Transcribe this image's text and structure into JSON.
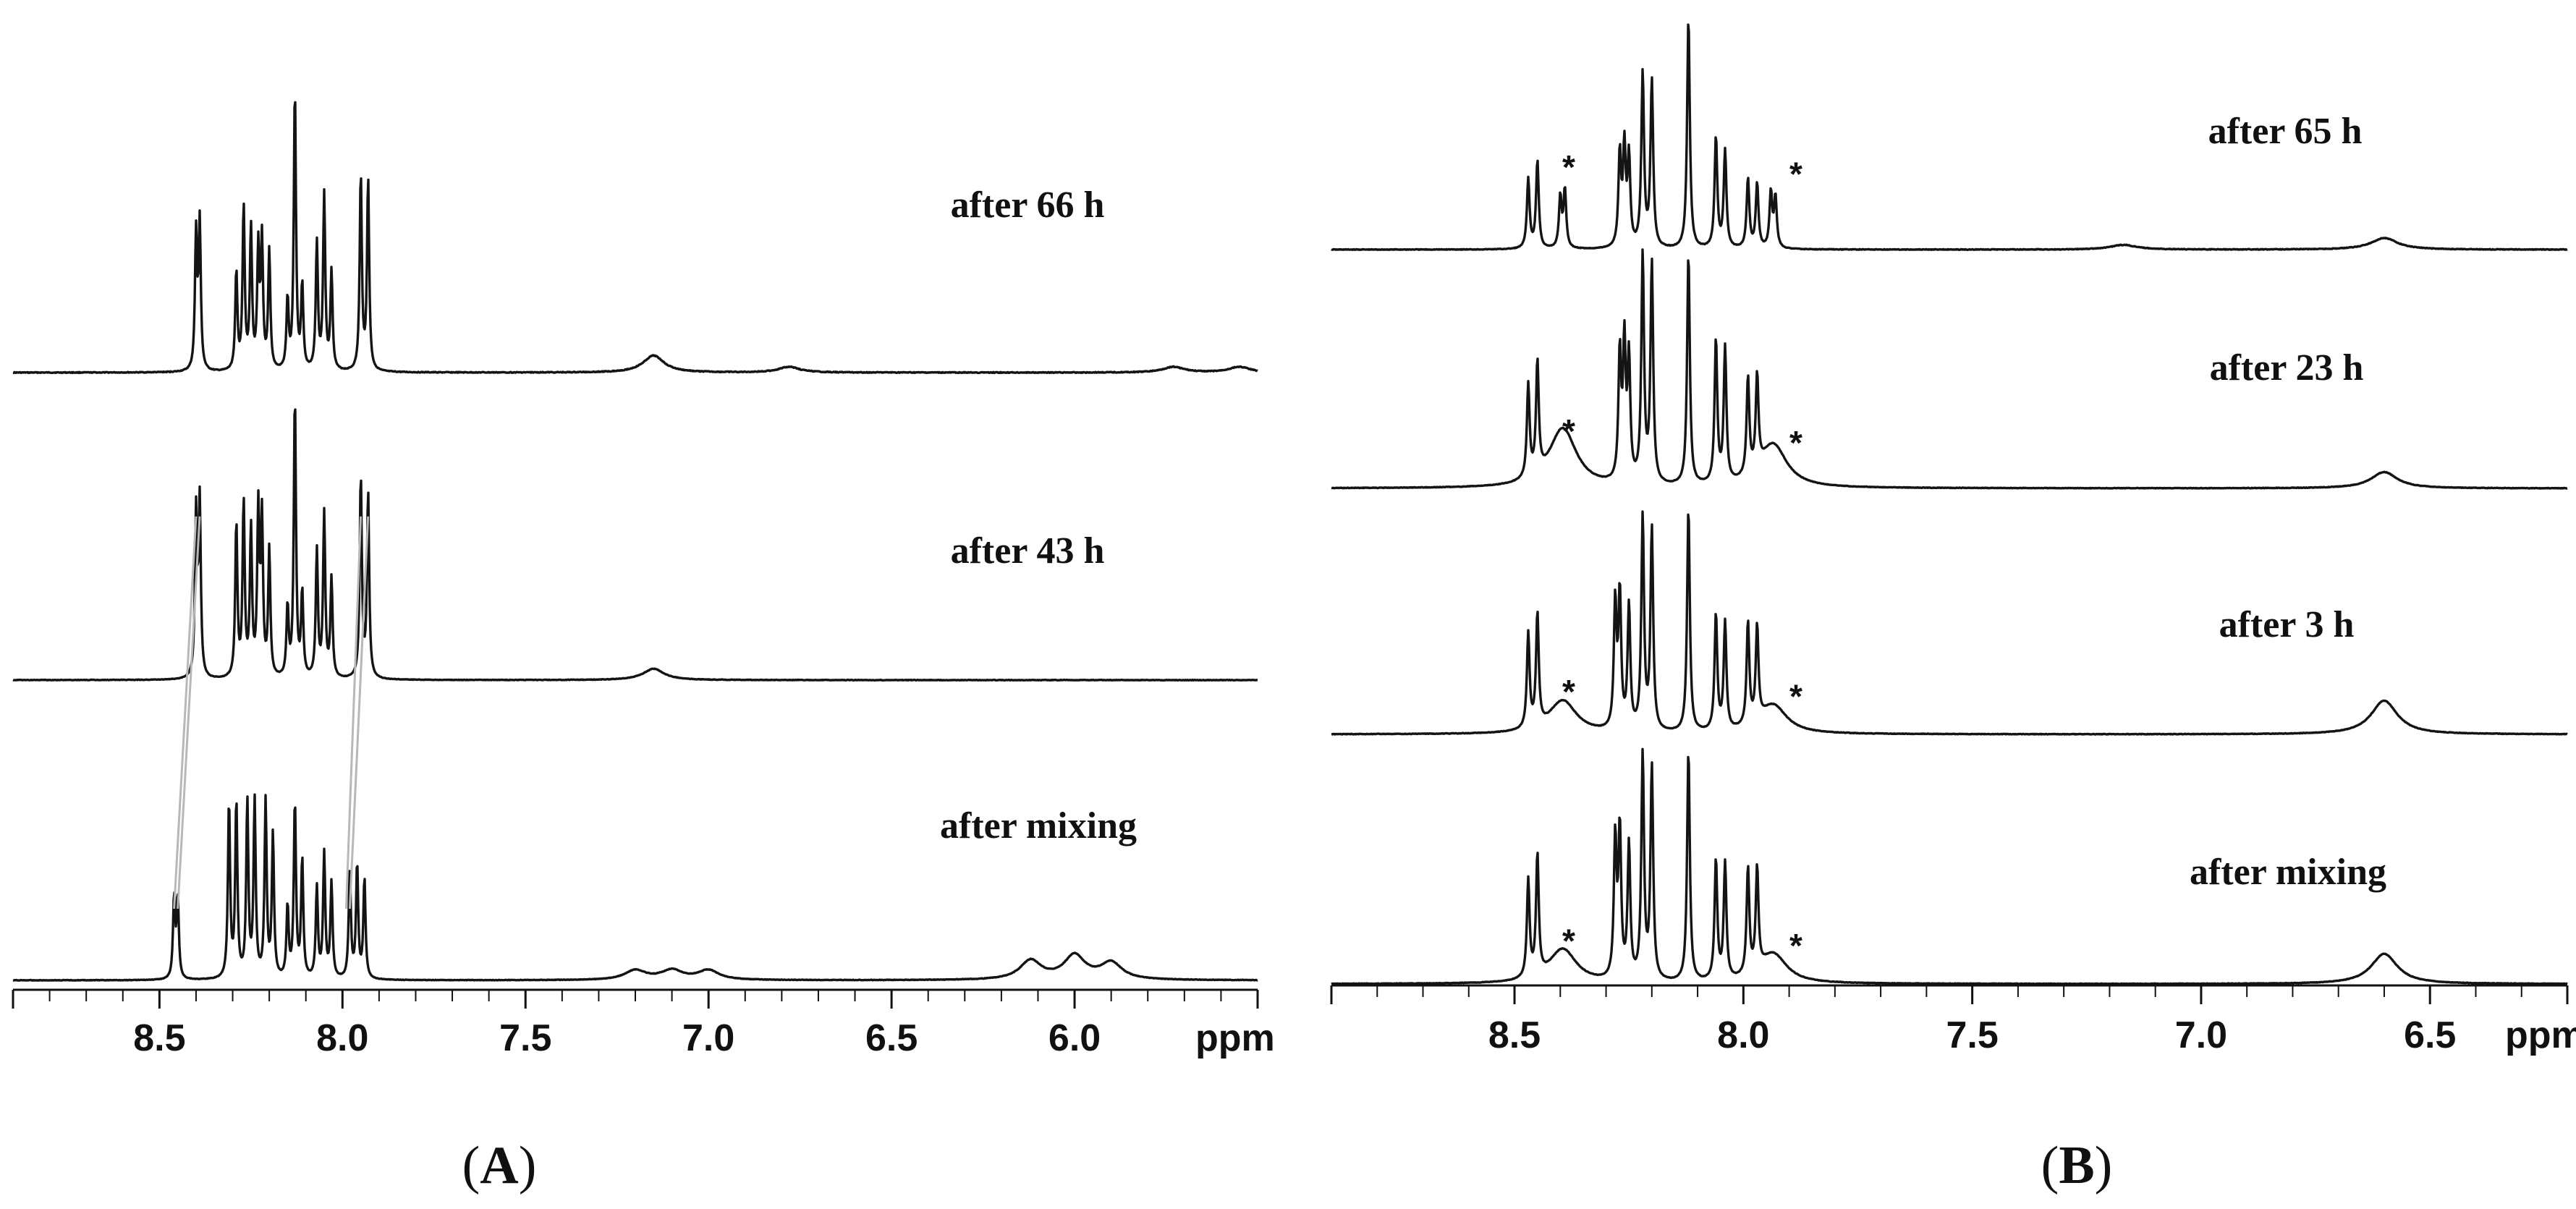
{
  "chart_data": [
    {
      "panel": "A",
      "type": "line",
      "subtype": "stacked 1H NMR spectra",
      "xlabel": "ppm",
      "xlim": [
        8.9,
        5.5
      ],
      "x_reversed": true,
      "x_ticks": [
        "8.5",
        "8.0",
        "7.5",
        "7.0",
        "6.5",
        "6.0"
      ],
      "series": [
        {
          "name": "after 66 h",
          "peaks": [
            {
              "ppm": 8.4,
              "height": 0.48
            },
            {
              "ppm": 8.39,
              "height": 0.52
            },
            {
              "ppm": 8.29,
              "height": 0.35
            },
            {
              "ppm": 8.27,
              "height": 0.58
            },
            {
              "ppm": 8.25,
              "height": 0.5
            },
            {
              "ppm": 8.23,
              "height": 0.42
            },
            {
              "ppm": 8.22,
              "height": 0.45
            },
            {
              "ppm": 8.2,
              "height": 0.42
            },
            {
              "ppm": 8.15,
              "height": 0.25
            },
            {
              "ppm": 8.13,
              "height": 1.0
            },
            {
              "ppm": 8.11,
              "height": 0.3
            },
            {
              "ppm": 8.07,
              "height": 0.45
            },
            {
              "ppm": 8.05,
              "height": 0.62
            },
            {
              "ppm": 8.03,
              "height": 0.35
            },
            {
              "ppm": 7.95,
              "height": 0.7
            },
            {
              "ppm": 7.93,
              "height": 0.68
            },
            {
              "ppm": 7.15,
              "height": 0.06
            },
            {
              "ppm": 6.78,
              "height": 0.02
            },
            {
              "ppm": 5.73,
              "height": 0.02
            },
            {
              "ppm": 5.55,
              "height": 0.02
            }
          ]
        },
        {
          "name": "after 43 h",
          "peaks": [
            {
              "ppm": 8.4,
              "height": 0.58
            },
            {
              "ppm": 8.39,
              "height": 0.62
            },
            {
              "ppm": 8.29,
              "height": 0.55
            },
            {
              "ppm": 8.27,
              "height": 0.62
            },
            {
              "ppm": 8.25,
              "height": 0.52
            },
            {
              "ppm": 8.23,
              "height": 0.58
            },
            {
              "ppm": 8.22,
              "height": 0.55
            },
            {
              "ppm": 8.2,
              "height": 0.45
            },
            {
              "ppm": 8.15,
              "height": 0.25
            },
            {
              "ppm": 8.13,
              "height": 1.0
            },
            {
              "ppm": 8.11,
              "height": 0.3
            },
            {
              "ppm": 8.07,
              "height": 0.45
            },
            {
              "ppm": 8.05,
              "height": 0.58
            },
            {
              "ppm": 8.03,
              "height": 0.35
            },
            {
              "ppm": 7.95,
              "height": 0.72
            },
            {
              "ppm": 7.93,
              "height": 0.66
            },
            {
              "ppm": 7.15,
              "height": 0.04
            }
          ]
        },
        {
          "name": "after mixing",
          "peaks": [
            {
              "ppm": 8.46,
              "height": 0.34
            },
            {
              "ppm": 8.45,
              "height": 0.34
            },
            {
              "ppm": 8.31,
              "height": 0.74
            },
            {
              "ppm": 8.29,
              "height": 0.74
            },
            {
              "ppm": 8.26,
              "height": 0.74
            },
            {
              "ppm": 8.24,
              "height": 0.74
            },
            {
              "ppm": 8.21,
              "height": 0.74
            },
            {
              "ppm": 8.19,
              "height": 0.6
            },
            {
              "ppm": 8.15,
              "height": 0.3
            },
            {
              "ppm": 8.13,
              "height": 0.74
            },
            {
              "ppm": 8.11,
              "height": 0.5
            },
            {
              "ppm": 8.07,
              "height": 0.38
            },
            {
              "ppm": 8.05,
              "height": 0.52
            },
            {
              "ppm": 8.03,
              "height": 0.4
            },
            {
              "ppm": 7.98,
              "height": 0.46
            },
            {
              "ppm": 7.96,
              "height": 0.48
            },
            {
              "ppm": 7.94,
              "height": 0.42
            },
            {
              "ppm": 7.2,
              "height": 0.04
            },
            {
              "ppm": 7.1,
              "height": 0.04
            },
            {
              "ppm": 7.0,
              "height": 0.04
            },
            {
              "ppm": 6.12,
              "height": 0.08
            },
            {
              "ppm": 6.0,
              "height": 0.1
            },
            {
              "ppm": 5.9,
              "height": 0.07
            }
          ]
        }
      ],
      "shift_guides": [
        {
          "from_ppm": 8.46,
          "to_ppm": 8.4
        },
        {
          "from_ppm": 8.45,
          "to_ppm": 8.39
        },
        {
          "from_ppm": 7.99,
          "to_ppm": 7.95
        },
        {
          "from_ppm": 7.98,
          "to_ppm": 7.93
        }
      ]
    },
    {
      "panel": "B",
      "type": "line",
      "subtype": "stacked 1H NMR spectra",
      "xlabel": "ppm",
      "xlim": [
        8.9,
        6.2
      ],
      "x_reversed": true,
      "x_ticks": [
        "8.5",
        "8.0",
        "7.5",
        "7.0",
        "6.5"
      ],
      "annotation": "*",
      "series": [
        {
          "name": "after 65 h",
          "peaks": [
            {
              "ppm": 8.47,
              "height": 0.3
            },
            {
              "ppm": 8.45,
              "height": 0.38
            },
            {
              "ppm": 8.4,
              "height": 0.22
            },
            {
              "ppm": 8.39,
              "height": 0.25
            },
            {
              "ppm": 8.27,
              "height": 0.4
            },
            {
              "ppm": 8.26,
              "height": 0.42
            },
            {
              "ppm": 8.25,
              "height": 0.38
            },
            {
              "ppm": 8.22,
              "height": 0.75
            },
            {
              "ppm": 8.2,
              "height": 0.72
            },
            {
              "ppm": 8.12,
              "height": 1.0
            },
            {
              "ppm": 8.06,
              "height": 0.48
            },
            {
              "ppm": 8.04,
              "height": 0.42
            },
            {
              "ppm": 7.99,
              "height": 0.3
            },
            {
              "ppm": 7.97,
              "height": 0.28
            },
            {
              "ppm": 7.94,
              "height": 0.24
            },
            {
              "ppm": 7.93,
              "height": 0.22
            },
            {
              "ppm": 7.17,
              "height": 0.02
            },
            {
              "ppm": 6.6,
              "height": 0.05
            }
          ]
        },
        {
          "name": "after 23 h",
          "peaks": [
            {
              "ppm": 8.47,
              "height": 0.4
            },
            {
              "ppm": 8.45,
              "height": 0.48
            },
            {
              "ppm": 8.4,
              "height": 0.12
            },
            {
              "ppm": 8.39,
              "height": 0.14
            },
            {
              "ppm": 8.27,
              "height": 0.55
            },
            {
              "ppm": 8.26,
              "height": 0.58
            },
            {
              "ppm": 8.25,
              "height": 0.52
            },
            {
              "ppm": 8.22,
              "height": 0.98
            },
            {
              "ppm": 8.2,
              "height": 0.95
            },
            {
              "ppm": 8.12,
              "height": 1.0
            },
            {
              "ppm": 8.06,
              "height": 0.62
            },
            {
              "ppm": 8.04,
              "height": 0.58
            },
            {
              "ppm": 7.99,
              "height": 0.42
            },
            {
              "ppm": 7.97,
              "height": 0.4
            },
            {
              "ppm": 7.94,
              "height": 0.1
            },
            {
              "ppm": 7.93,
              "height": 0.09
            },
            {
              "ppm": 6.6,
              "height": 0.07
            }
          ]
        },
        {
          "name": "after 3 h",
          "peaks": [
            {
              "ppm": 8.47,
              "height": 0.42
            },
            {
              "ppm": 8.45,
              "height": 0.5
            },
            {
              "ppm": 8.4,
              "height": 0.07
            },
            {
              "ppm": 8.39,
              "height": 0.08
            },
            {
              "ppm": 8.28,
              "height": 0.56
            },
            {
              "ppm": 8.27,
              "height": 0.6
            },
            {
              "ppm": 8.25,
              "height": 0.55
            },
            {
              "ppm": 8.22,
              "height": 0.95
            },
            {
              "ppm": 8.2,
              "height": 0.9
            },
            {
              "ppm": 8.12,
              "height": 1.0
            },
            {
              "ppm": 8.06,
              "height": 0.52
            },
            {
              "ppm": 8.04,
              "height": 0.48
            },
            {
              "ppm": 7.99,
              "height": 0.46
            },
            {
              "ppm": 7.97,
              "height": 0.42
            },
            {
              "ppm": 7.94,
              "height": 0.07
            },
            {
              "ppm": 7.93,
              "height": 0.06
            },
            {
              "ppm": 6.6,
              "height": 0.15
            }
          ]
        },
        {
          "name": "after mixing",
          "peaks": [
            {
              "ppm": 8.47,
              "height": 0.42
            },
            {
              "ppm": 8.45,
              "height": 0.52
            },
            {
              "ppm": 8.4,
              "height": 0.07
            },
            {
              "ppm": 8.39,
              "height": 0.08
            },
            {
              "ppm": 8.28,
              "height": 0.6
            },
            {
              "ppm": 8.27,
              "height": 0.64
            },
            {
              "ppm": 8.25,
              "height": 0.58
            },
            {
              "ppm": 8.22,
              "height": 0.97
            },
            {
              "ppm": 8.2,
              "height": 0.92
            },
            {
              "ppm": 8.12,
              "height": 1.0
            },
            {
              "ppm": 8.06,
              "height": 0.52
            },
            {
              "ppm": 8.04,
              "height": 0.5
            },
            {
              "ppm": 7.99,
              "height": 0.46
            },
            {
              "ppm": 7.97,
              "height": 0.44
            },
            {
              "ppm": 7.94,
              "height": 0.07
            },
            {
              "ppm": 7.93,
              "height": 0.06
            },
            {
              "ppm": 6.6,
              "height": 0.13
            }
          ]
        }
      ]
    }
  ],
  "panel_labels": [
    {
      "open": "(",
      "letter": "A",
      "close": ")"
    },
    {
      "open": "(",
      "letter": "B",
      "close": ")"
    }
  ]
}
